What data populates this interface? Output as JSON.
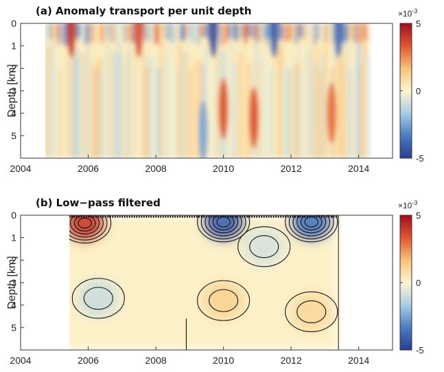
{
  "chart_data": [
    {
      "type": "heatmap",
      "title": "(a) Anomaly transport per unit depth",
      "ylabel": "Depth [km]",
      "xlim": [
        2004,
        2015
      ],
      "ylim": [
        6,
        0
      ],
      "xticks": [
        "2004",
        "2006",
        "2008",
        "2010",
        "2012",
        "2014"
      ],
      "yticks": [
        "0",
        "1",
        "2",
        "3",
        "4",
        "5"
      ],
      "data_extent": {
        "x": [
          2004.3,
          2014.3
        ],
        "y": [
          0,
          6
        ]
      },
      "colorbar": {
        "range": [
          -5,
          5
        ],
        "ticks": [
          "5",
          "0",
          "-5"
        ],
        "multiplier_base": "×10",
        "multiplier_exp": "-3",
        "colors": [
          "#2b3b93",
          "#4a7cc0",
          "#a9cde6",
          "#fdf6d0",
          "#f9c277",
          "#e2552f",
          "#9e0f20"
        ]
      },
      "features": [
        {
          "x": 2010.0,
          "depth": 3.8,
          "value": 3.5
        },
        {
          "x": 2010.9,
          "depth": 4.2,
          "value": 3.5
        },
        {
          "x": 2013.2,
          "depth": 4.0,
          "value": 3.0
        },
        {
          "x": 2009.4,
          "depth": 4.8,
          "value": -2.5
        },
        {
          "x": 2005.5,
          "depth": 0.15,
          "value": 4.0
        },
        {
          "x": 2007.5,
          "depth": 0.15,
          "value": 3.5
        },
        {
          "x": 2009.7,
          "depth": 0.15,
          "value": -4.5
        },
        {
          "x": 2011.5,
          "depth": 0.15,
          "value": -4.0
        },
        {
          "x": 2013.4,
          "depth": 0.15,
          "value": -3.5
        }
      ]
    },
    {
      "type": "heatmap",
      "title": "(b) Low−pass filtered",
      "ylabel": "Depth [km]",
      "xlim": [
        2004,
        2015
      ],
      "ylim": [
        6,
        0
      ],
      "xticks": [
        "2004",
        "2006",
        "2008",
        "2010",
        "2012",
        "2014"
      ],
      "yticks": [
        "0",
        "1",
        "2",
        "3",
        "4",
        "5"
      ],
      "data_extent": {
        "x": [
          2005.0,
          2013.4
        ],
        "y": [
          0,
          6
        ]
      },
      "colorbar": {
        "range": [
          -5,
          5
        ],
        "ticks": [
          "5",
          "0",
          "-5"
        ],
        "multiplier_base": "×10",
        "multiplier_exp": "-3",
        "colors": [
          "#2b3b93",
          "#4a7cc0",
          "#a9cde6",
          "#fdf6d0",
          "#f9c277",
          "#e2552f",
          "#9e0f20"
        ]
      },
      "features": [
        {
          "x": 2005.9,
          "depth": 0.35,
          "value": 4.0
        },
        {
          "x": 2010.0,
          "depth": 0.3,
          "value": -4.0
        },
        {
          "x": 2012.6,
          "depth": 0.3,
          "value": -3.5
        },
        {
          "x": 2006.3,
          "depth": 3.7,
          "value": -1.0
        },
        {
          "x": 2010.0,
          "depth": 3.8,
          "value": 1.2
        },
        {
          "x": 2012.6,
          "depth": 4.3,
          "value": 1.0
        },
        {
          "x": 2011.2,
          "depth": 1.4,
          "value": -0.8
        }
      ]
    }
  ]
}
